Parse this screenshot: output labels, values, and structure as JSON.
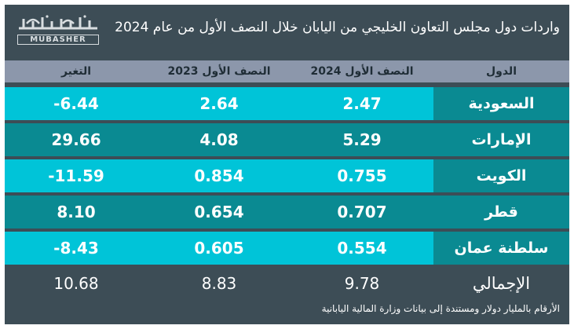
{
  "header": {
    "title": "واردات دول مجلس التعاون الخليجي من اليابان خلال النصف الأول من عام 2024",
    "logo_arabic": "مباشر",
    "logo_english": "MUBASHER"
  },
  "columns": {
    "country": "الدول",
    "h1_2024": "النصف الأول 2024",
    "h1_2023": "النصف الأول 2023",
    "change": "التغير"
  },
  "colors": {
    "bright_cyan": "#00c4d8",
    "dark_teal": "#0a8a92",
    "background": "#3d4d56",
    "header_bar": "#8c97ab"
  },
  "chart_data": {
    "type": "table",
    "title": "واردات دول مجلس التعاون الخليجي من اليابان خلال النصف الأول من عام 2024",
    "columns": [
      "الدول",
      "النصف الأول 2024",
      "النصف الأول 2023",
      "التغير"
    ],
    "rows": [
      {
        "country": "السعودية",
        "h1_2024": "2.47",
        "h1_2023": "2.64",
        "change": "-6.44"
      },
      {
        "country": "الإمارات",
        "h1_2024": "5.29",
        "h1_2023": "4.08",
        "change": "29.66"
      },
      {
        "country": "الكويت",
        "h1_2024": "0.755",
        "h1_2023": "0.854",
        "change": "-11.59"
      },
      {
        "country": "قطر",
        "h1_2024": "0.707",
        "h1_2023": "0.654",
        "change": "8.10"
      },
      {
        "country": "سلطنة عمان",
        "h1_2024": "0.554",
        "h1_2023": "0.605",
        "change": "-8.43"
      }
    ],
    "total": {
      "label": "الإجمالي",
      "h1_2024": "9.78",
      "h1_2023": "8.83",
      "change": "10.68"
    },
    "note": "الأرقام بالمليار دولار ومستندة إلى بيانات وزارة المالية اليابانية"
  }
}
